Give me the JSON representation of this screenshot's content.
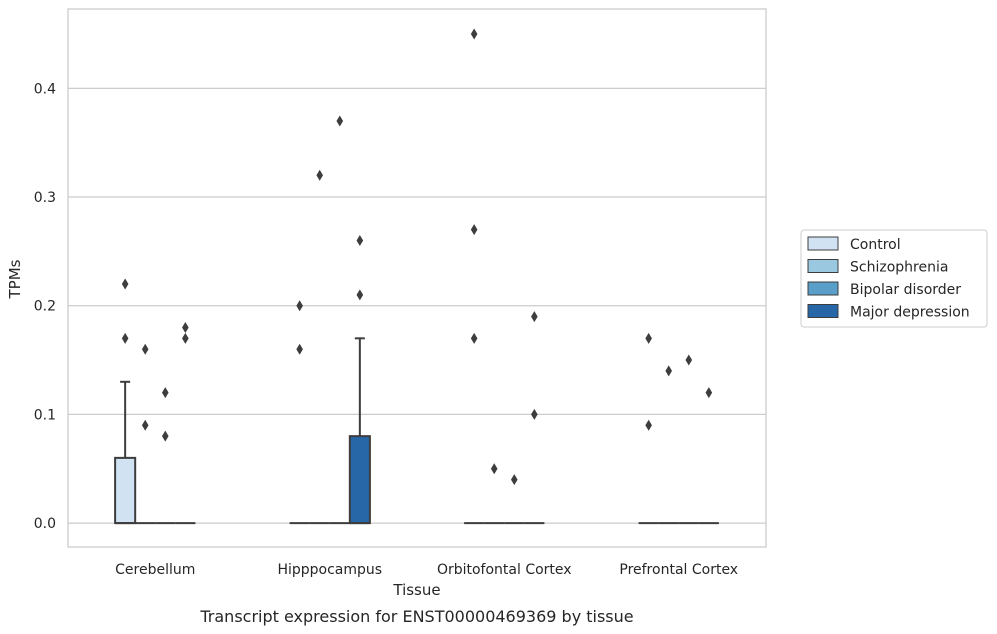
{
  "chart_data": {
    "type": "box",
    "caption": "Transcript expression for ENST00000469369 by tissue",
    "xlabel": "Tissue",
    "ylabel": "TPMs",
    "ylim": [
      -0.022,
      0.473
    ],
    "yticks": [
      0.0,
      0.1,
      0.2,
      0.3,
      0.4
    ],
    "ytick_labels": [
      "0.0",
      "0.1",
      "0.2",
      "0.3",
      "0.4"
    ],
    "grid": true,
    "legend_position": "right",
    "categories": [
      "Cerebellum",
      "Hipppocampus",
      "Orbitofontal Cortex",
      "Prefrontal Cortex"
    ],
    "series": [
      {
        "name": "Control",
        "color": "#d1e2f2",
        "boxes": [
          {
            "q1": 0,
            "median": 0,
            "q3": 0.06,
            "whisker_low": 0,
            "whisker_high": 0.13,
            "outliers": [
              0.17,
              0.22
            ]
          },
          {
            "q1": 0,
            "median": 0,
            "q3": 0,
            "whisker_low": 0,
            "whisker_high": 0,
            "outliers": [
              0.16,
              0.2
            ]
          },
          {
            "q1": 0,
            "median": 0,
            "q3": 0,
            "whisker_low": 0,
            "whisker_high": 0,
            "outliers": [
              0.17,
              0.27,
              0.45
            ]
          },
          {
            "q1": 0,
            "median": 0,
            "q3": 0,
            "whisker_low": 0,
            "whisker_high": 0,
            "outliers": [
              0.09,
              0.17
            ]
          }
        ]
      },
      {
        "name": "Schizophrenia",
        "color": "#9ac8e0",
        "boxes": [
          {
            "q1": 0,
            "median": 0,
            "q3": 0,
            "whisker_low": 0,
            "whisker_high": 0,
            "outliers": [
              0.09,
              0.16
            ]
          },
          {
            "q1": 0,
            "median": 0,
            "q3": 0,
            "whisker_low": 0,
            "whisker_high": 0,
            "outliers": [
              0.32
            ]
          },
          {
            "q1": 0,
            "median": 0,
            "q3": 0,
            "whisker_low": 0,
            "whisker_high": 0,
            "outliers": [
              0.05
            ]
          },
          {
            "q1": 0,
            "median": 0,
            "q3": 0,
            "whisker_low": 0,
            "whisker_high": 0,
            "outliers": [
              0.14
            ]
          }
        ]
      },
      {
        "name": "Bipolar disorder",
        "color": "#5a9fca",
        "boxes": [
          {
            "q1": 0,
            "median": 0,
            "q3": 0,
            "whisker_low": 0,
            "whisker_high": 0,
            "outliers": [
              0.08,
              0.12
            ]
          },
          {
            "q1": 0,
            "median": 0,
            "q3": 0,
            "whisker_low": 0,
            "whisker_high": 0,
            "outliers": [
              0.37
            ]
          },
          {
            "q1": 0,
            "median": 0,
            "q3": 0,
            "whisker_low": 0,
            "whisker_high": 0,
            "outliers": [
              0.04
            ]
          },
          {
            "q1": 0,
            "median": 0,
            "q3": 0,
            "whisker_low": 0,
            "whisker_high": 0,
            "outliers": [
              0.15
            ]
          }
        ]
      },
      {
        "name": "Major depression",
        "color": "#2767a8",
        "boxes": [
          {
            "q1": 0,
            "median": 0,
            "q3": 0,
            "whisker_low": 0,
            "whisker_high": 0,
            "outliers": [
              0.17,
              0.18
            ]
          },
          {
            "q1": 0,
            "median": 0,
            "q3": 0.08,
            "whisker_low": 0,
            "whisker_high": 0.17,
            "outliers": [
              0.21,
              0.26
            ]
          },
          {
            "q1": 0,
            "median": 0,
            "q3": 0,
            "whisker_low": 0,
            "whisker_high": 0,
            "outliers": [
              0.1,
              0.19
            ]
          },
          {
            "q1": 0,
            "median": 0,
            "q3": 0,
            "whisker_low": 0,
            "whisker_high": 0,
            "outliers": [
              0.12
            ]
          }
        ]
      }
    ]
  }
}
